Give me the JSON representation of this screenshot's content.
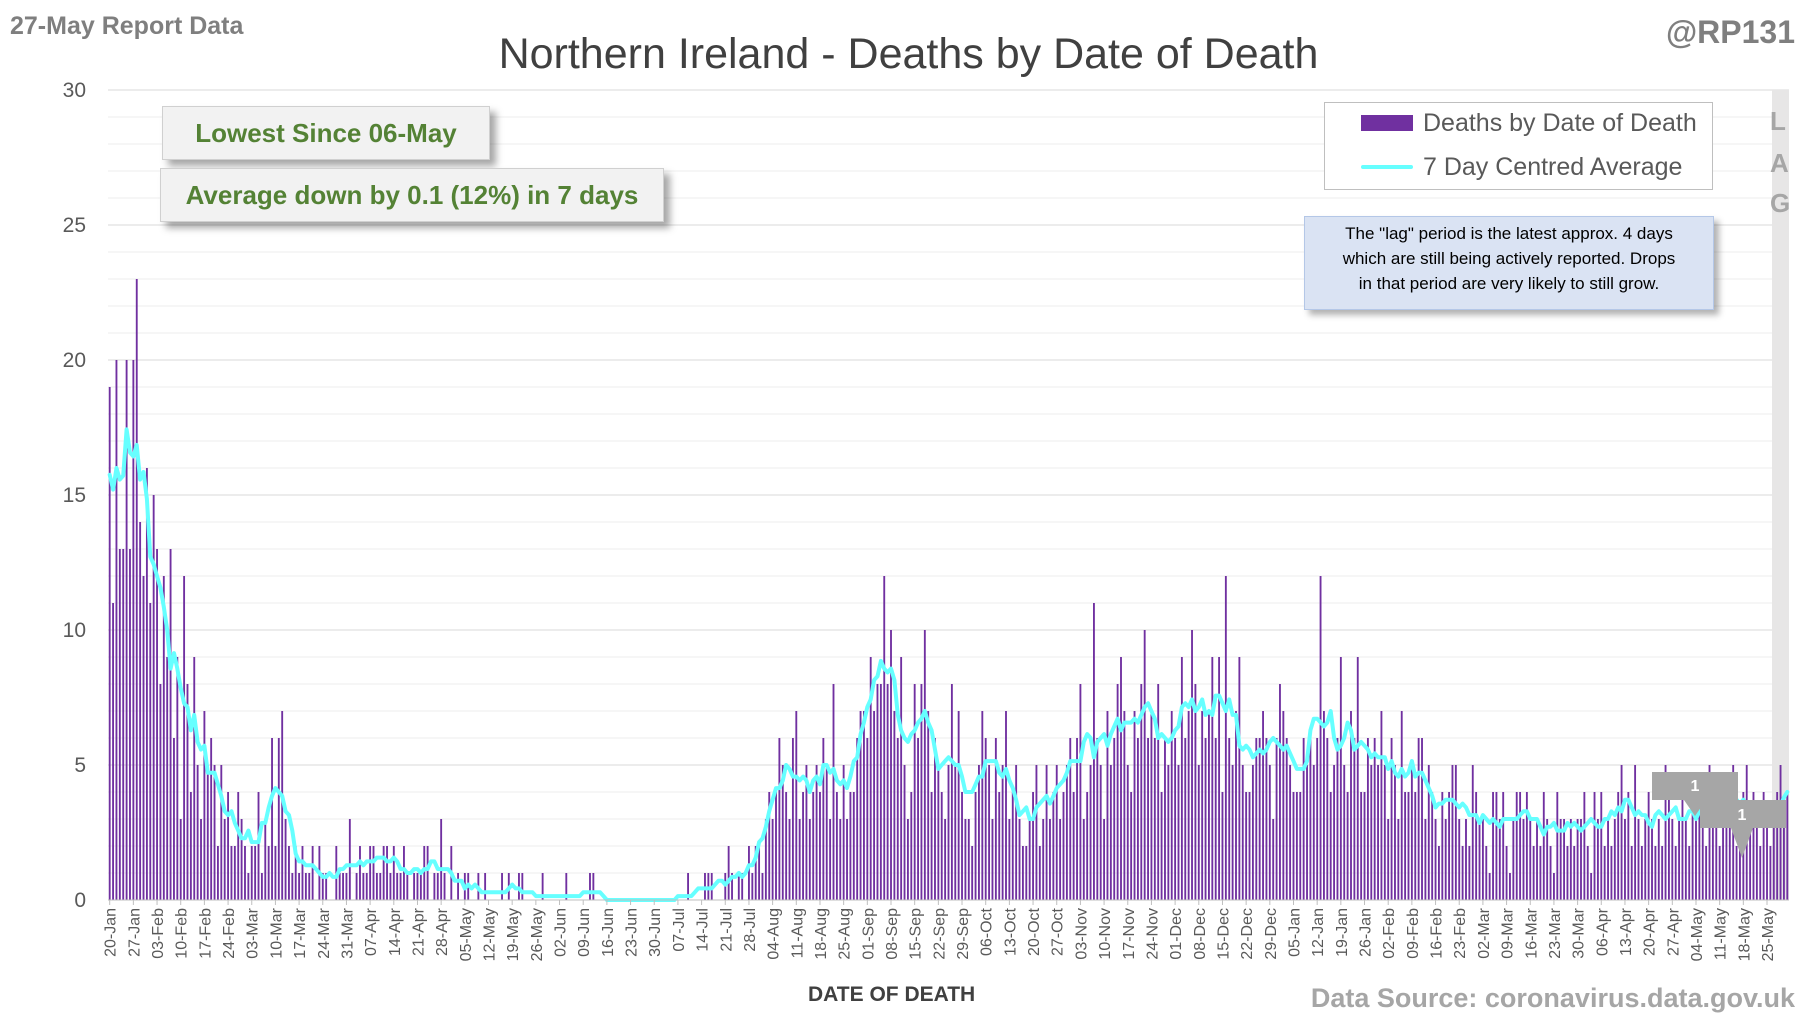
{
  "header": {
    "report_label": "27-May Report Data",
    "handle": "@RP131",
    "title": "Northern Ireland - Deaths by Date of Death"
  },
  "callouts": {
    "lowest": "Lowest Since 06-May",
    "average": "Average down by 0.1 (12%) in 7 days"
  },
  "legend": {
    "bars_label": "Deaths by Date of Death",
    "line_label": "7 Day Centred Average"
  },
  "lag_note": {
    "line1": "The \"lag\" period is the latest approx. 4 days",
    "line2": "which are still being actively reported.  Drops",
    "line3": "in that period are very likely to still grow.",
    "letters": [
      "L",
      "A",
      "G"
    ]
  },
  "markers": {
    "peak_marker": "1",
    "latest_marker": "1"
  },
  "footer": {
    "x_axis_title": "DATE OF DEATH",
    "source": "Data Source: coronavirus.data.gov.uk"
  },
  "colors": {
    "bars": "#7030a0",
    "average": "#66ffff",
    "lag_band": "#e7e6e6",
    "callout_text": "#548235"
  },
  "chart_data": {
    "type": "bar",
    "title": "Northern Ireland - Deaths by Date of Death",
    "xlabel": "DATE OF DEATH",
    "ylabel": "",
    "ylim": [
      0,
      30
    ],
    "yticks": [
      0,
      5,
      10,
      15,
      20,
      25,
      30
    ],
    "grid": true,
    "legend_position": "top-right",
    "x_tick_labels": [
      "20-Jan",
      "27-Jan",
      "03-Feb",
      "10-Feb",
      "17-Feb",
      "24-Feb",
      "03-Mar",
      "10-Mar",
      "17-Mar",
      "24-Mar",
      "31-Mar",
      "07-Apr",
      "14-Apr",
      "21-Apr",
      "28-Apr",
      "05-May",
      "12-May",
      "19-May",
      "26-May",
      "02-Jun",
      "09-Jun",
      "16-Jun",
      "23-Jun",
      "30-Jun",
      "07-Jul",
      "14-Jul",
      "21-Jul",
      "28-Jul",
      "04-Aug",
      "11-Aug",
      "18-Aug",
      "25-Aug",
      "01-Sep",
      "08-Sep",
      "15-Sep",
      "22-Sep",
      "29-Sep",
      "06-Oct",
      "13-Oct",
      "20-Oct",
      "27-Oct",
      "03-Nov",
      "10-Nov",
      "17-Nov",
      "24-Nov",
      "01-Dec",
      "08-Dec",
      "15-Dec",
      "22-Dec",
      "29-Dec",
      "05-Jan",
      "12-Jan",
      "19-Jan",
      "26-Jan",
      "02-Feb",
      "09-Feb",
      "16-Feb",
      "23-Feb",
      "02-Mar",
      "09-Mar",
      "16-Mar",
      "23-Mar",
      "30-Mar",
      "06-Apr",
      "13-Apr",
      "20-Apr",
      "27-Apr",
      "04-May",
      "11-May",
      "18-May",
      "25-May"
    ],
    "series": [
      {
        "name": "Deaths by Date of Death",
        "type": "bar",
        "weekly_values": [
          [
            19,
            11,
            20,
            13,
            13,
            20,
            13
          ],
          [
            20,
            23,
            14,
            12,
            16,
            11,
            15
          ],
          [
            13,
            8,
            12,
            9,
            13,
            6,
            9
          ],
          [
            3,
            12,
            8,
            4,
            9,
            5,
            3
          ],
          [
            7,
            5,
            6,
            5,
            2,
            5,
            3
          ],
          [
            4,
            2,
            2,
            4,
            3,
            2,
            1
          ],
          [
            2,
            2,
            4,
            1,
            3,
            2,
            6
          ],
          [
            2,
            6,
            7,
            3,
            2,
            1,
            2
          ],
          [
            1,
            2,
            1,
            1,
            2,
            0,
            2
          ],
          [
            1,
            1,
            0,
            0,
            2,
            1,
            1
          ],
          [
            1,
            3,
            0,
            1,
            2,
            1,
            1
          ],
          [
            2,
            2,
            1,
            1,
            2,
            2,
            1
          ],
          [
            2,
            1,
            1,
            2,
            1,
            0,
            1
          ],
          [
            1,
            1,
            2,
            2,
            0,
            1,
            1
          ],
          [
            3,
            1,
            0,
            2,
            0,
            1,
            0
          ],
          [
            1,
            1,
            0,
            0,
            1,
            0,
            1
          ],
          [
            0,
            0,
            0,
            0,
            1,
            0,
            1
          ],
          [
            0,
            0,
            1,
            1,
            0,
            0,
            0
          ],
          [
            0,
            0,
            1,
            0,
            0,
            0,
            0
          ],
          [
            0,
            0,
            1,
            0,
            0,
            0,
            0
          ],
          [
            0,
            0,
            1,
            1,
            0,
            0,
            0
          ],
          [
            0,
            0,
            0,
            0,
            0,
            0,
            0
          ],
          [
            0,
            0,
            0,
            0,
            0,
            0,
            0
          ],
          [
            0,
            0,
            0,
            0,
            0,
            0,
            0
          ],
          [
            0,
            0,
            0,
            1,
            0,
            0,
            0
          ],
          [
            0,
            1,
            1,
            1,
            0,
            0,
            0
          ],
          [
            1,
            2,
            1,
            0,
            1,
            1,
            0
          ],
          [
            2,
            1,
            2,
            2,
            1,
            3,
            4
          ],
          [
            3,
            4,
            6,
            5,
            4,
            3,
            6
          ],
          [
            7,
            3,
            4,
            5,
            3,
            4,
            5
          ],
          [
            4,
            6,
            5,
            3,
            8,
            4,
            3
          ],
          [
            5,
            3,
            4,
            4,
            6,
            7,
            7
          ],
          [
            6,
            9,
            7,
            8,
            8,
            12,
            8
          ],
          [
            10,
            7,
            6,
            9,
            5,
            3,
            4
          ],
          [
            8,
            6,
            8,
            10,
            7,
            4,
            6
          ],
          [
            5,
            4,
            3,
            5,
            8,
            5,
            7
          ],
          [
            4,
            3,
            3,
            2,
            4,
            5,
            7
          ],
          [
            6,
            5,
            3,
            6,
            4,
            5,
            7
          ],
          [
            3,
            4,
            5,
            3,
            2,
            2,
            3
          ],
          [
            4,
            5,
            2,
            3,
            5,
            3,
            4
          ],
          [
            5,
            3,
            4,
            5,
            6,
            4,
            6
          ],
          [
            8,
            3,
            4,
            5,
            11,
            6,
            5
          ],
          [
            3,
            7,
            5,
            6,
            8,
            9,
            7
          ],
          [
            5,
            4,
            7,
            6,
            8,
            10,
            6
          ],
          [
            7,
            6,
            8,
            4,
            6,
            5,
            7
          ],
          [
            6,
            5,
            9,
            6,
            7,
            10,
            8
          ],
          [
            5,
            7,
            6,
            7,
            9,
            6,
            9
          ],
          [
            4,
            12,
            6,
            5,
            7,
            9,
            5
          ],
          [
            4,
            4,
            5,
            6,
            6,
            7,
            6
          ],
          [
            5,
            3,
            6,
            8,
            7,
            6,
            5
          ],
          [
            4,
            4,
            4,
            6,
            5,
            6,
            5
          ],
          [
            6,
            12,
            7,
            6,
            4,
            5,
            6
          ],
          [
            9,
            5,
            4,
            7,
            6,
            9,
            4
          ],
          [
            4,
            6,
            5,
            6,
            5,
            7,
            5
          ],
          [
            3,
            6,
            5,
            3,
            7,
            4,
            4
          ],
          [
            5,
            4,
            6,
            6,
            3,
            5,
            4
          ],
          [
            3,
            2,
            4,
            3,
            4,
            5,
            5
          ],
          [
            3,
            2,
            3,
            2,
            5,
            4,
            3
          ],
          [
            3,
            2,
            1,
            4,
            4,
            3,
            4
          ],
          [
            2,
            1,
            3,
            4,
            4,
            3,
            4
          ],
          [
            3,
            2,
            3,
            2,
            4,
            3,
            2
          ],
          [
            1,
            4,
            3,
            3,
            2,
            3,
            2
          ],
          [
            3,
            3,
            4,
            2,
            1,
            4,
            3
          ],
          [
            4,
            2,
            3,
            2,
            3,
            4,
            5
          ],
          [
            3,
            4,
            2,
            5,
            3,
            2,
            3
          ],
          [
            4,
            3,
            2,
            3,
            2,
            5,
            4
          ],
          [
            3,
            2,
            3,
            4,
            3,
            2,
            4
          ],
          [
            3,
            4,
            3,
            2,
            5,
            4,
            3
          ],
          [
            2,
            3,
            4,
            3,
            5,
            2,
            3
          ],
          [
            4,
            5,
            3,
            4,
            3,
            2,
            4
          ],
          [
            3,
            2,
            3,
            4,
            5,
            3,
            4
          ]
        ]
      },
      {
        "name": "7 Day Centred Average",
        "type": "line"
      }
    ]
  }
}
